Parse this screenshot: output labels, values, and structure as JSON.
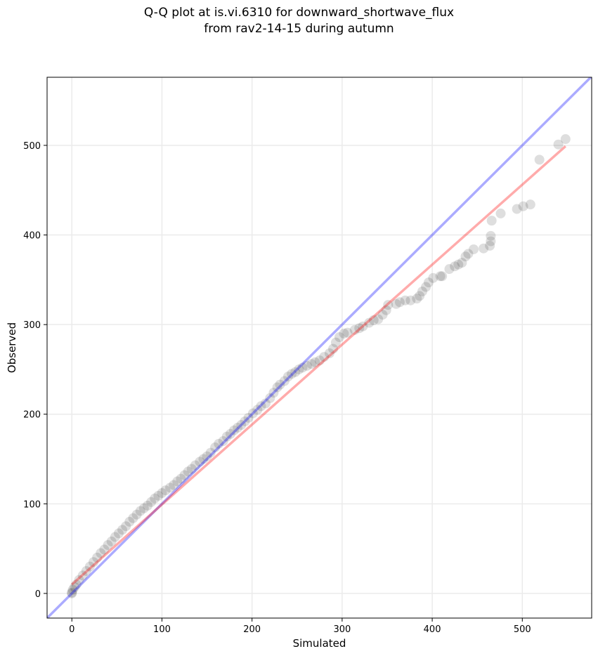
{
  "chart_data": {
    "type": "scatter",
    "title": [
      "Q-Q plot at is.vi.6310 for downward_shortwave_flux",
      "from rav2-14-15 during autumn"
    ],
    "xlabel": "Simulated",
    "ylabel": "Observed",
    "xlim": [
      -27.5,
      577
    ],
    "ylim": [
      -27.5,
      576
    ],
    "xticks": [
      0,
      100,
      200,
      300,
      400,
      500
    ],
    "yticks": [
      0,
      100,
      200,
      300,
      400,
      500
    ],
    "grid": true,
    "colors": {
      "points": "#000000",
      "identity_line": "#0000ff",
      "fit_line": "#ff0000"
    },
    "identity_line": {
      "x": [
        -27.5,
        577
      ],
      "y": [
        -27.5,
        577
      ]
    },
    "fit_line": {
      "x": [
        0,
        548
      ],
      "y": [
        10,
        499
      ]
    },
    "points": [
      [
        548,
        507
      ],
      [
        540,
        501
      ],
      [
        519,
        484
      ],
      [
        509,
        434
      ],
      [
        501,
        432
      ],
      [
        494,
        429
      ],
      [
        476,
        424
      ],
      [
        466,
        416
      ],
      [
        465,
        399
      ],
      [
        465,
        393
      ],
      [
        464,
        388
      ],
      [
        457,
        385
      ],
      [
        446,
        384
      ],
      [
        440,
        379
      ],
      [
        437,
        376
      ],
      [
        433,
        369
      ],
      [
        429,
        367
      ],
      [
        425,
        365
      ],
      [
        419,
        362
      ],
      [
        411,
        354
      ],
      [
        409,
        354
      ],
      [
        401,
        352
      ],
      [
        396,
        347
      ],
      [
        393,
        342
      ],
      [
        389,
        337
      ],
      [
        386,
        332
      ],
      [
        383,
        329
      ],
      [
        376,
        327
      ],
      [
        370,
        327
      ],
      [
        364,
        325
      ],
      [
        360,
        323
      ],
      [
        351,
        322
      ],
      [
        349,
        316
      ],
      [
        345,
        311
      ],
      [
        340,
        306
      ],
      [
        335,
        305
      ],
      [
        330,
        302
      ],
      [
        323,
        298
      ],
      [
        319,
        296
      ],
      [
        314,
        294
      ],
      [
        306,
        291
      ],
      [
        302,
        290
      ],
      [
        297,
        286
      ],
      [
        293,
        280
      ],
      [
        290,
        273
      ],
      [
        286,
        268
      ],
      [
        280,
        264
      ],
      [
        275,
        260
      ],
      [
        270,
        258
      ],
      [
        266,
        256
      ],
      [
        261,
        254
      ],
      [
        256,
        252
      ],
      [
        252,
        250
      ],
      [
        248,
        247
      ],
      [
        244,
        245
      ],
      [
        240,
        242
      ],
      [
        236,
        237
      ],
      [
        231,
        233
      ],
      [
        228,
        230
      ],
      [
        224,
        224
      ],
      [
        220,
        218
      ],
      [
        215,
        212
      ],
      [
        210,
        209
      ],
      [
        206,
        205
      ],
      [
        201,
        201
      ],
      [
        196,
        196
      ],
      [
        192,
        192
      ],
      [
        188,
        188
      ],
      [
        184,
        185
      ],
      [
        180,
        182
      ],
      [
        176,
        178
      ],
      [
        172,
        175
      ],
      [
        168,
        170
      ],
      [
        163,
        167
      ],
      [
        159,
        163
      ],
      [
        154,
        157
      ],
      [
        150,
        153
      ],
      [
        146,
        150
      ],
      [
        142,
        147
      ],
      [
        137,
        143
      ],
      [
        133,
        139
      ],
      [
        129,
        136
      ],
      [
        125,
        132
      ],
      [
        121,
        128
      ],
      [
        117,
        125
      ],
      [
        113,
        121
      ],
      [
        109,
        118
      ],
      [
        104,
        115
      ],
      [
        100,
        112
      ],
      [
        96,
        109
      ],
      [
        92,
        106
      ],
      [
        88,
        102
      ],
      [
        84,
        98
      ],
      [
        80,
        95
      ],
      [
        76,
        92
      ],
      [
        72,
        88
      ],
      [
        68,
        84
      ],
      [
        64,
        80
      ],
      [
        60,
        75
      ],
      [
        56,
        71
      ],
      [
        52,
        67
      ],
      [
        48,
        63
      ],
      [
        44,
        58
      ],
      [
        40,
        54
      ],
      [
        36,
        49
      ],
      [
        32,
        45
      ],
      [
        28,
        40
      ],
      [
        24,
        35
      ],
      [
        20,
        30
      ],
      [
        16,
        25
      ],
      [
        12,
        20
      ],
      [
        8,
        15
      ],
      [
        5,
        10
      ],
      [
        3,
        7
      ],
      [
        1,
        4
      ],
      [
        0,
        1
      ],
      [
        0,
        0
      ]
    ]
  }
}
